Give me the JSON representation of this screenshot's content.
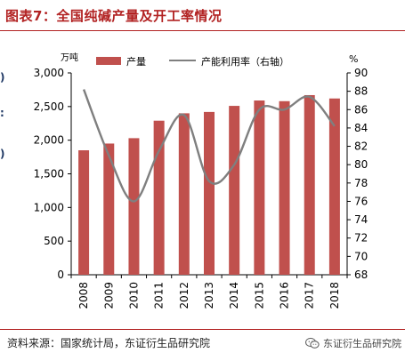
{
  "header": {
    "title": "图表7：全国纯碱产量及开工率情况"
  },
  "footer": {
    "source": "资料来源：国家统计局，东证衍生品研究院",
    "brand": "东证衍生品研究院"
  },
  "colors": {
    "accent": "#b22222",
    "bar": "#c0504d",
    "line": "#7f7f7f",
    "side_marks": "#1f3864"
  },
  "icons": {
    "brand": "wechat-icon"
  },
  "chart_data": {
    "type": "bar",
    "categories": [
      "2008",
      "2009",
      "2010",
      "2011",
      "2012",
      "2013",
      "2014",
      "2015",
      "2016",
      "2017",
      "2018"
    ],
    "series": [
      {
        "name": "产量",
        "type": "bar",
        "axis": "left",
        "values": [
          1850,
          1950,
          2030,
          2290,
          2400,
          2420,
          2510,
          2590,
          2580,
          2670,
          2620
        ]
      },
      {
        "name": "产能利用率（右轴）",
        "type": "line",
        "axis": "right",
        "values": [
          88.2,
          81.0,
          76.0,
          81.5,
          85.4,
          78.2,
          80.0,
          86.0,
          86.0,
          87.4,
          84.2
        ]
      }
    ],
    "y_left": {
      "unit": "万吨",
      "lim": [
        0,
        3000
      ],
      "ticks": [
        "0",
        "500",
        "1,000",
        "1,500",
        "2,000",
        "2,500",
        "3,000"
      ]
    },
    "y_right": {
      "unit": "%",
      "lim": [
        68,
        90
      ],
      "ticks": [
        "68",
        "70",
        "72",
        "74",
        "76",
        "78",
        "80",
        "82",
        "84",
        "86",
        "88",
        "90"
      ]
    },
    "grid": false,
    "legend": "top-center"
  }
}
